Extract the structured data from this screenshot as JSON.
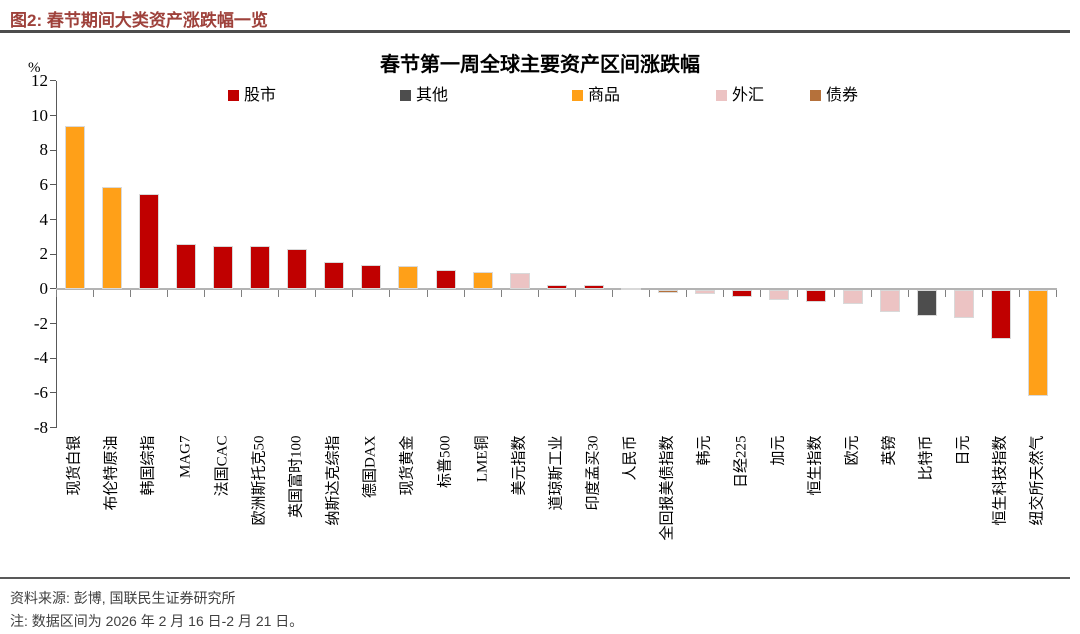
{
  "figure": {
    "caption": "图2: 春节期间大类资产涨跌幅一览",
    "caption_color": "#9E413B",
    "source_line": "资料来源: 彭博, 国联民生证券研究所",
    "note_line": "注: 数据区间为 2026 年 2 月 16 日-2 月 21 日。"
  },
  "chart_data": {
    "type": "bar",
    "title": "春节第一周全球主要资产区间涨跌幅",
    "y_unit": "%",
    "ylim": [
      -8,
      12
    ],
    "ytick_step": 2,
    "grid": false,
    "legend_position": "top",
    "legend": [
      {
        "label": "股市",
        "color": "#C00000"
      },
      {
        "label": "其他",
        "color": "#4D4D4D"
      },
      {
        "label": "商品",
        "color": "#FFA018"
      },
      {
        "label": "外汇",
        "color": "#ECC3C3"
      },
      {
        "label": "债券",
        "color": "#B5713B"
      }
    ],
    "categories": [
      "现货白银",
      "布伦特原油",
      "韩国综指",
      "MAG7",
      "法国CAC",
      "欧洲斯托克50",
      "英国富时100",
      "纳斯达克综指",
      "德国DAX",
      "现货黄金",
      "标普500",
      "LME铜",
      "美元指数",
      "道琼斯工业",
      "印度孟买30",
      "人民币",
      "全回报美债指数",
      "韩元",
      "日经225",
      "加元",
      "恒生指数",
      "欧元",
      "英镑",
      "比特币",
      "日元",
      "恒生科技指数",
      "纽交所天然气"
    ],
    "values": [
      9.4,
      5.9,
      5.5,
      2.6,
      2.5,
      2.45,
      2.3,
      1.55,
      1.4,
      1.3,
      1.1,
      1.0,
      0.9,
      0.25,
      0.2,
      0.05,
      -0.2,
      -0.25,
      -0.4,
      -0.6,
      -0.7,
      -0.8,
      -1.3,
      -1.5,
      -1.6,
      -2.85,
      -6.1
    ],
    "series_group": [
      "商品",
      "商品",
      "股市",
      "股市",
      "股市",
      "股市",
      "股市",
      "股市",
      "股市",
      "商品",
      "股市",
      "商品",
      "外汇",
      "股市",
      "股市",
      "外汇",
      "债券",
      "外汇",
      "股市",
      "外汇",
      "股市",
      "外汇",
      "外汇",
      "其他",
      "外汇",
      "股市",
      "商品"
    ]
  },
  "style": {
    "header_rule_color": "#4D4D4D",
    "footer_rule_color": "#595959",
    "axis_color": "#595959",
    "zero_line_color": "#b3b3b3"
  }
}
